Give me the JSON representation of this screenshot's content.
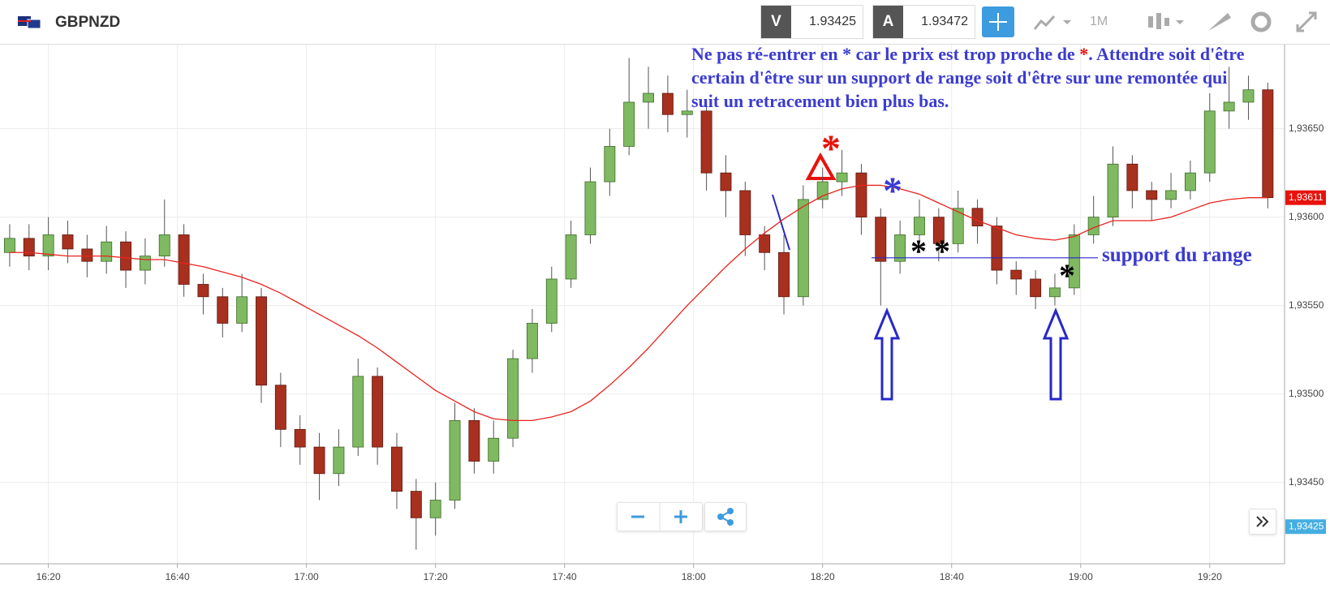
{
  "header": {
    "symbol": "GBPNZD",
    "bid_label": "V",
    "bid": "1.93425",
    "ask_label": "A",
    "ask": "1.93472",
    "timeframe": "1M"
  },
  "chart_data": {
    "type": "candlestick",
    "x": [
      14,
      17,
      20,
      23,
      26,
      29,
      32,
      35,
      38,
      41,
      44,
      47,
      50,
      53,
      56,
      59,
      62,
      65,
      68,
      71,
      74,
      77,
      80,
      83,
      86,
      89,
      92,
      95,
      98,
      101,
      104,
      107,
      110,
      113,
      116,
      119,
      122,
      125,
      128,
      131,
      134,
      137,
      140,
      143,
      146,
      149,
      152,
      155,
      158,
      161,
      164,
      167,
      170,
      173,
      176,
      179,
      182,
      185,
      188,
      191,
      194,
      197,
      200,
      203,
      206,
      209
    ],
    "open": [
      1.9358,
      1.93588,
      1.93578,
      1.9359,
      1.93582,
      1.93575,
      1.93586,
      1.9357,
      1.93578,
      1.9359,
      1.93562,
      1.93555,
      1.9354,
      1.93555,
      1.93505,
      1.9348,
      1.9347,
      1.93455,
      1.9347,
      1.9351,
      1.9347,
      1.93445,
      1.9343,
      1.9344,
      1.93485,
      1.93462,
      1.93475,
      1.9352,
      1.9354,
      1.93565,
      1.9359,
      1.9362,
      1.9364,
      1.93665,
      1.9367,
      1.93658,
      1.9366,
      1.93625,
      1.93615,
      1.9359,
      1.9358,
      1.93555,
      1.9361,
      1.9362,
      1.93625,
      1.936,
      1.93575,
      1.9359,
      1.936,
      1.93585,
      1.93605,
      1.93595,
      1.9357,
      1.93565,
      1.93555,
      1.9356,
      1.9359,
      1.936,
      1.9363,
      1.93615,
      1.9361,
      1.93615,
      1.93625,
      1.9366,
      1.93665,
      1.93672
    ],
    "high": [
      1.93596,
      1.93596,
      1.936,
      1.93598,
      1.9359,
      1.93595,
      1.93592,
      1.93588,
      1.9361,
      1.93596,
      1.93568,
      1.9356,
      1.93568,
      1.9356,
      1.93512,
      1.93488,
      1.93478,
      1.9348,
      1.9352,
      1.93515,
      1.93478,
      1.93452,
      1.9345,
      1.93495,
      1.93492,
      1.93485,
      1.93525,
      1.93548,
      1.93572,
      1.93598,
      1.93628,
      1.9365,
      1.9369,
      1.93685,
      1.9368,
      1.93672,
      1.93664,
      1.93635,
      1.9362,
      1.93595,
      1.9359,
      1.93618,
      1.93628,
      1.93638,
      1.9363,
      1.93605,
      1.93598,
      1.9361,
      1.93605,
      1.93615,
      1.9361,
      1.936,
      1.93575,
      1.9357,
      1.93568,
      1.93596,
      1.93612,
      1.9364,
      1.93635,
      1.9362,
      1.93625,
      1.93632,
      1.9367,
      1.93685,
      1.9368,
      1.93676
    ],
    "low": [
      1.93572,
      1.9357,
      1.9357,
      1.93574,
      1.93566,
      1.93568,
      1.9356,
      1.93562,
      1.93572,
      1.93555,
      1.93545,
      1.93532,
      1.93535,
      1.93495,
      1.9347,
      1.9346,
      1.9344,
      1.93448,
      1.93465,
      1.9346,
      1.93435,
      1.93412,
      1.9342,
      1.93435,
      1.93455,
      1.93455,
      1.9347,
      1.93512,
      1.93535,
      1.9356,
      1.93585,
      1.93612,
      1.93635,
      1.9365,
      1.93648,
      1.93645,
      1.93615,
      1.936,
      1.93578,
      1.9357,
      1.93545,
      1.9355,
      1.93605,
      1.93612,
      1.9359,
      1.9355,
      1.93568,
      1.93585,
      1.93575,
      1.9358,
      1.93585,
      1.93562,
      1.93556,
      1.93548,
      1.9355,
      1.93556,
      1.93585,
      1.93595,
      1.93605,
      1.93598,
      1.93605,
      1.9361,
      1.9362,
      1.9365,
      1.93655,
      1.93605
    ],
    "close": [
      1.93588,
      1.93578,
      1.9359,
      1.93582,
      1.93575,
      1.93586,
      1.9357,
      1.93578,
      1.9359,
      1.93562,
      1.93555,
      1.9354,
      1.93555,
      1.93505,
      1.9348,
      1.9347,
      1.93455,
      1.9347,
      1.9351,
      1.9347,
      1.93445,
      1.9343,
      1.9344,
      1.93485,
      1.93462,
      1.93475,
      1.9352,
      1.9354,
      1.93565,
      1.9359,
      1.9362,
      1.9364,
      1.93665,
      1.9367,
      1.93658,
      1.9366,
      1.93625,
      1.93615,
      1.9359,
      1.9358,
      1.93555,
      1.9361,
      1.9362,
      1.93625,
      1.936,
      1.93575,
      1.9359,
      1.936,
      1.93585,
      1.93605,
      1.93595,
      1.9357,
      1.93565,
      1.93555,
      1.9356,
      1.9359,
      1.936,
      1.9363,
      1.93615,
      1.9361,
      1.93615,
      1.93625,
      1.9366,
      1.93665,
      1.93672,
      1.93611
    ],
    "up_color": "#7fb961",
    "down_color": "#a8301f",
    "ma": {
      "color": "#e8241f",
      "values": [
        1.9358,
        1.9358,
        1.93579,
        1.93578,
        1.93578,
        1.93578,
        1.93577,
        1.93576,
        1.93576,
        1.93574,
        1.93572,
        1.93569,
        1.93566,
        1.93562,
        1.93557,
        1.93551,
        1.93545,
        1.93539,
        1.93533,
        1.93526,
        1.93518,
        1.9351,
        1.93502,
        1.93496,
        1.9349,
        1.93486,
        1.93485,
        1.93485,
        1.93487,
        1.9349,
        1.93496,
        1.93505,
        1.93515,
        1.93526,
        1.93538,
        1.9355,
        1.93561,
        1.93572,
        1.93582,
        1.93591,
        1.93599,
        1.93606,
        1.93612,
        1.93616,
        1.93618,
        1.93618,
        1.93616,
        1.93613,
        1.93608,
        1.93603,
        1.93598,
        1.93594,
        1.9359,
        1.93588,
        1.93587,
        1.93589,
        1.93594,
        1.93598,
        1.93598,
        1.93598,
        1.936,
        1.93604,
        1.93608,
        1.9361,
        1.93611,
        1.93611
      ]
    },
    "xlim": [
      12.5,
      211.6
    ],
    "ylim": [
      1.93404,
      1.93698
    ],
    "xticks": [
      {
        "value": 20,
        "label": "16:20"
      },
      {
        "value": 40,
        "label": "16:40"
      },
      {
        "value": 60,
        "label": "17:00"
      },
      {
        "value": 80,
        "label": "17:20"
      },
      {
        "value": 100,
        "label": "17:40"
      },
      {
        "value": 120,
        "label": "18:00"
      },
      {
        "value": 140,
        "label": "18:20"
      },
      {
        "value": 160,
        "label": "18:40"
      },
      {
        "value": 180,
        "label": "19:00"
      },
      {
        "value": 200,
        "label": "19:20"
      }
    ],
    "yticks": [
      {
        "value": 1.9345,
        "label": "1,93450"
      },
      {
        "value": 1.935,
        "label": "1,93500"
      },
      {
        "value": 1.9355,
        "label": "1,93550"
      },
      {
        "value": 1.936,
        "label": "1,93600"
      },
      {
        "value": 1.9365,
        "label": "1,93650"
      }
    ],
    "grid": true,
    "price_tags": [
      {
        "value": 1.93611,
        "label": "1,93611",
        "color": "#e8120c"
      },
      {
        "value": 1.93425,
        "label": "1,93425",
        "color": "#45aee0"
      }
    ],
    "support_level": 1.93577,
    "annotations": {
      "note": [
        "Ne pas ré-entrer en * car le prix est trop proche de ",
        "*",
        ". Attendre soit d'être certain d'être sur un support de range soit d'être sur une remontée qui suit un retracement bien plus bas."
      ],
      "support_label": "support du range",
      "markers": [
        "*",
        "*",
        "*",
        "*",
        "*"
      ]
    }
  }
}
